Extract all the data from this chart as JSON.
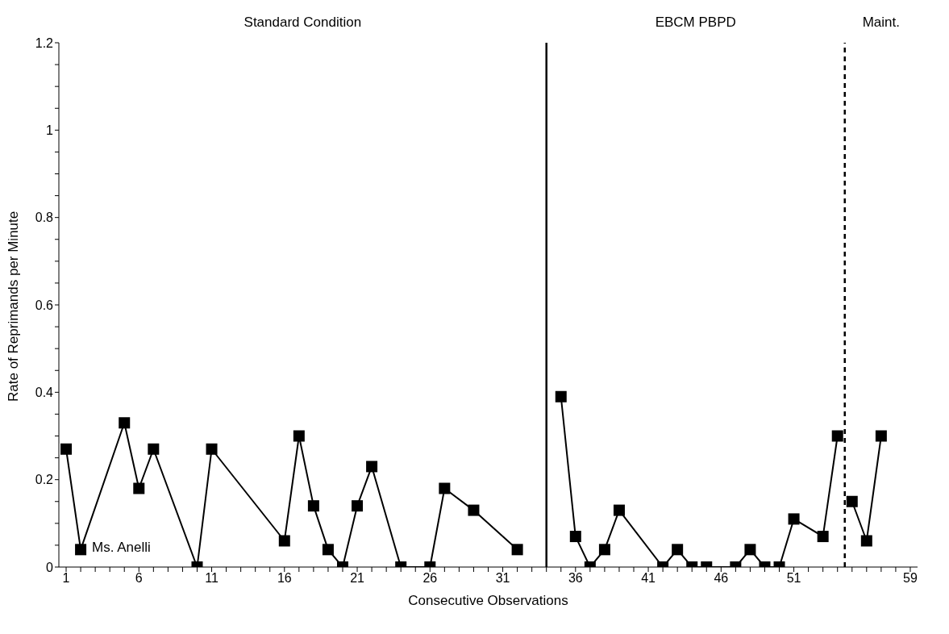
{
  "chart_data": {
    "type": "line",
    "xlabel": "Consecutive Observations",
    "ylabel": "Rate of Reprimands per Minute",
    "series": [
      {
        "color": "#000000",
        "x": [
          1,
          2,
          5,
          6,
          7,
          10,
          11,
          16,
          17,
          18,
          19,
          20,
          21,
          22,
          24,
          26,
          27,
          29,
          32
        ],
        "values": [
          0.27,
          0.04,
          0.33,
          0.18,
          0.27,
          0,
          0.27,
          0.06,
          0.3,
          0.14,
          0.04,
          0,
          0.14,
          0.23,
          0,
          0,
          0.18,
          0.13,
          0.04
        ]
      },
      {
        "color": "#000000",
        "x": [
          35,
          36,
          37,
          38,
          39,
          42,
          43,
          44,
          45,
          47,
          48,
          49,
          50,
          51,
          53,
          54
        ],
        "values": [
          0.39,
          0.07,
          0,
          0.04,
          0.13,
          0,
          0.04,
          0,
          0,
          0,
          0.04,
          0,
          0,
          0.11,
          0.07,
          0.3
        ]
      },
      {
        "color": "#000000",
        "x": [
          55,
          56,
          57
        ],
        "values": [
          0.15,
          0.06,
          0.3
        ]
      }
    ],
    "marker": "square",
    "line_style": "solid",
    "xlim": [
      0.5,
      59.5
    ],
    "ylim": [
      0,
      1.2
    ],
    "xticks": [
      1,
      {
        "value": 2,
        "label": null
      },
      {
        "value": 3,
        "label": null
      },
      {
        "value": 4,
        "label": null
      },
      {
        "value": 5,
        "label": null
      },
      6,
      {
        "value": 7,
        "label": null
      },
      {
        "value": 8,
        "label": null
      },
      {
        "value": 9,
        "label": null
      },
      {
        "value": 10,
        "label": null
      },
      11,
      {
        "value": 12,
        "label": null
      },
      {
        "value": 13,
        "label": null
      },
      {
        "value": 14,
        "label": null
      },
      {
        "value": 15,
        "label": null
      },
      16,
      {
        "value": 17,
        "label": null
      },
      {
        "value": 18,
        "label": null
      },
      {
        "value": 19,
        "label": null
      },
      {
        "value": 20,
        "label": null
      },
      21,
      {
        "value": 22,
        "label": null
      },
      {
        "value": 23,
        "label": null
      },
      {
        "value": 24,
        "label": null
      },
      {
        "value": 25,
        "label": null
      },
      26,
      {
        "value": 27,
        "label": null
      },
      {
        "value": 28,
        "label": null
      },
      {
        "value": 29,
        "label": null
      },
      {
        "value": 30,
        "label": null
      },
      31,
      {
        "value": 32,
        "label": null
      },
      {
        "value": 33,
        "label": null
      },
      {
        "value": 34,
        "label": null
      },
      {
        "value": 35,
        "label": null
      },
      36,
      {
        "value": 37,
        "label": null
      },
      {
        "value": 38,
        "label": null
      },
      {
        "value": 39,
        "label": null
      },
      {
        "value": 40,
        "label": null
      },
      41,
      {
        "value": 42,
        "label": null
      },
      {
        "value": 43,
        "label": null
      },
      {
        "value": 44,
        "label": null
      },
      {
        "value": 45,
        "label": null
      },
      46,
      {
        "value": 47,
        "label": null
      },
      {
        "value": 48,
        "label": null
      },
      {
        "value": 49,
        "label": null
      },
      {
        "value": 50,
        "label": null
      },
      51,
      {
        "value": 52,
        "label": null
      },
      {
        "value": 53,
        "label": null
      },
      {
        "value": 54,
        "label": null
      },
      {
        "value": 55,
        "label": null
      },
      {
        "value": 56,
        "label": null
      },
      {
        "value": 57,
        "label": null
      },
      {
        "value": 58,
        "label": null
      },
      59
    ],
    "yticks": [
      0,
      {
        "value": 0.05,
        "label": null
      },
      {
        "value": 0.1,
        "label": null
      },
      {
        "value": 0.15,
        "label": null
      },
      0.2,
      {
        "value": 0.25,
        "label": null
      },
      {
        "value": 0.3,
        "label": null
      },
      {
        "value": 0.35,
        "label": null
      },
      0.4,
      {
        "value": 0.45,
        "label": null
      },
      {
        "value": 0.5,
        "label": null
      },
      {
        "value": 0.55,
        "label": null
      },
      0.6,
      {
        "value": 0.65,
        "label": null
      },
      {
        "value": 0.7,
        "label": null
      },
      {
        "value": 0.75,
        "label": null
      },
      0.8,
      {
        "value": 0.85,
        "label": null
      },
      {
        "value": 0.9,
        "label": null
      },
      {
        "value": 0.95,
        "label": null
      },
      1,
      {
        "value": 1.05,
        "label": null
      },
      {
        "value": 1.1,
        "label": null
      },
      {
        "value": 1.15,
        "label": null
      },
      1.2
    ],
    "ref_lines": [
      {
        "axis": "x",
        "value": 34,
        "color": "#000000",
        "line_style": "solid"
      },
      {
        "axis": "x",
        "value": 54.5,
        "color": "#000000",
        "line_style": "dashed"
      }
    ],
    "annotations": [
      "Standard Condition",
      "EBCM PBPD",
      "Maint.",
      {
        "text": "Ms. Anelli",
        "x": 2,
        "y": 0.04
      }
    ]
  }
}
